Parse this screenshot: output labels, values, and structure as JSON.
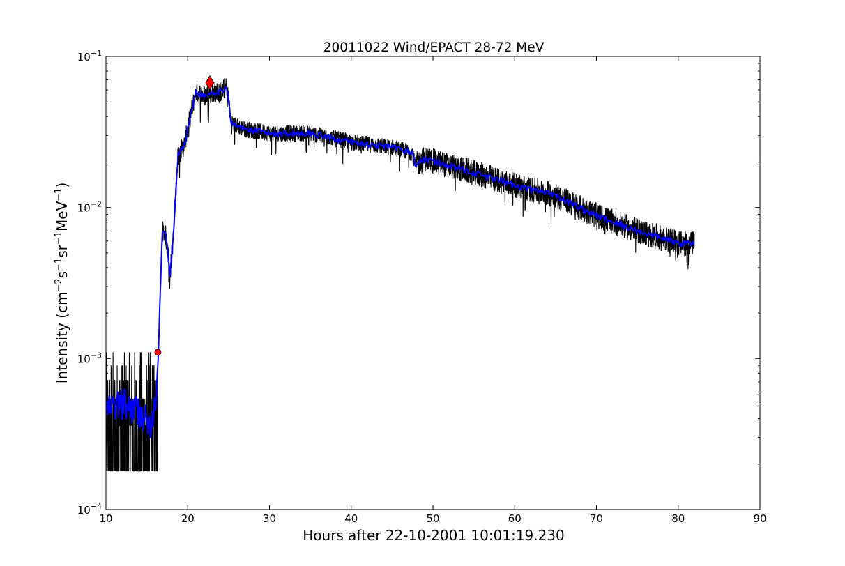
{
  "chart_data": {
    "type": "line",
    "title": "20011022 Wind/EPACT 28-72 MeV",
    "xlabel": "Hours after 22-10-2001 10:01:19.230",
    "ylabel_parts": [
      "Intensity (cm",
      "−2",
      "s",
      "−1",
      "sr",
      "−1",
      "MeV",
      "−1",
      ")"
    ],
    "xlim": [
      10,
      90
    ],
    "ylim": [
      0.0001,
      0.1
    ],
    "yscale": "log",
    "grid": false,
    "xticks": [
      10,
      20,
      30,
      40,
      50,
      60,
      70,
      80,
      90
    ],
    "xtick_labels": [
      "10",
      "20",
      "30",
      "40",
      "50",
      "60",
      "70",
      "80",
      "90"
    ],
    "yticks": [
      0.0001,
      0.001,
      0.01,
      0.1
    ],
    "ytick_labels": [
      {
        "base": "10",
        "exp": "−4"
      },
      {
        "base": "10",
        "exp": "−3"
      },
      {
        "base": "10",
        "exp": "−2"
      },
      {
        "base": "10",
        "exp": "−1"
      }
    ],
    "series": [
      {
        "style": "raw",
        "color": "#000000",
        "x_start": 10.0,
        "x_end": 82.0,
        "note_points_hours_intensity": [
          [
            10.0,
            0.00045
          ],
          [
            12.0,
            0.0005
          ],
          [
            14.0,
            0.00045
          ],
          [
            15.5,
            0.00035
          ],
          [
            16.2,
            0.0005
          ],
          [
            16.4,
            0.0011
          ],
          [
            16.9,
            0.007
          ],
          [
            17.3,
            0.0065
          ],
          [
            17.6,
            0.005
          ],
          [
            17.8,
            0.0035
          ],
          [
            18.2,
            0.006
          ],
          [
            18.8,
            0.022
          ],
          [
            19.6,
            0.026
          ],
          [
            20.3,
            0.04
          ],
          [
            21.0,
            0.058
          ],
          [
            22.0,
            0.055
          ],
          [
            23.0,
            0.058
          ],
          [
            24.0,
            0.058
          ],
          [
            24.8,
            0.063
          ],
          [
            25.3,
            0.036
          ],
          [
            27.0,
            0.033
          ],
          [
            30.0,
            0.031
          ],
          [
            35.0,
            0.031
          ],
          [
            40.0,
            0.027
          ],
          [
            45.0,
            0.025
          ],
          [
            47.5,
            0.023
          ],
          [
            47.8,
            0.019
          ],
          [
            49.0,
            0.021
          ],
          [
            55.0,
            0.017
          ],
          [
            60.0,
            0.014
          ],
          [
            65.0,
            0.012
          ],
          [
            70.0,
            0.0088
          ],
          [
            75.0,
            0.007
          ],
          [
            80.0,
            0.0058
          ],
          [
            82.0,
            0.0058
          ]
        ]
      },
      {
        "style": "smoothed",
        "color": "#0000ff",
        "points": [
          [
            10.0,
            0.00045
          ],
          [
            12.0,
            0.0005
          ],
          [
            14.0,
            0.00045
          ],
          [
            15.5,
            0.00035
          ],
          [
            16.2,
            0.0005
          ],
          [
            16.4,
            0.0011
          ],
          [
            16.9,
            0.007
          ],
          [
            17.3,
            0.0065
          ],
          [
            17.6,
            0.005
          ],
          [
            17.8,
            0.0035
          ],
          [
            18.2,
            0.006
          ],
          [
            18.8,
            0.022
          ],
          [
            19.6,
            0.026
          ],
          [
            20.3,
            0.04
          ],
          [
            21.0,
            0.058
          ],
          [
            22.0,
            0.055
          ],
          [
            23.0,
            0.058
          ],
          [
            24.0,
            0.058
          ],
          [
            24.8,
            0.063
          ],
          [
            25.3,
            0.036
          ],
          [
            27.0,
            0.033
          ],
          [
            30.0,
            0.031
          ],
          [
            35.0,
            0.031
          ],
          [
            40.0,
            0.027
          ],
          [
            45.0,
            0.025
          ],
          [
            47.5,
            0.023
          ],
          [
            47.8,
            0.019
          ],
          [
            49.0,
            0.021
          ],
          [
            55.0,
            0.017
          ],
          [
            60.0,
            0.014
          ],
          [
            65.0,
            0.012
          ],
          [
            70.0,
            0.0088
          ],
          [
            75.0,
            0.007
          ],
          [
            80.0,
            0.0058
          ],
          [
            82.0,
            0.0058
          ]
        ]
      }
    ],
    "markers": [
      {
        "shape": "circle",
        "color": "#ff0000",
        "x": 16.35,
        "y": 0.0011
      },
      {
        "shape": "diamond",
        "color": "#ff0000",
        "x": 22.7,
        "y": 0.067
      }
    ]
  }
}
